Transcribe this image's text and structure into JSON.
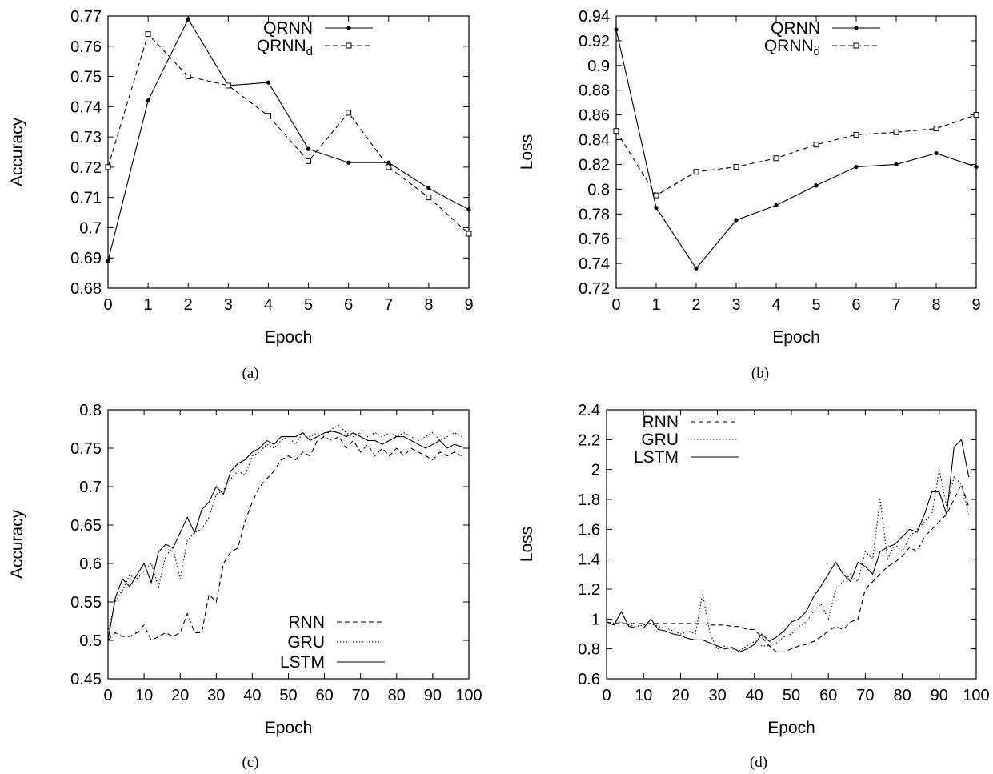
{
  "chart_data": [
    {
      "type": "line",
      "caption": "(a)",
      "xlabel": "Epoch",
      "ylabel": "Accuracy",
      "xlim": [
        0,
        9
      ],
      "ylim": [
        0.68,
        0.77
      ],
      "xticks": [
        "0",
        "1",
        "2",
        "3",
        "4",
        "5",
        "6",
        "7",
        "8",
        "9"
      ],
      "yticks": [
        "0.68",
        "0.69",
        "0.7",
        "0.71",
        "0.72",
        "0.73",
        "0.74",
        "0.75",
        "0.76",
        "0.77"
      ],
      "legend": "top-right",
      "x": [
        0,
        1,
        2,
        3,
        4,
        5,
        6,
        7,
        8,
        9
      ],
      "series": [
        {
          "name": "QRNN",
          "sub": "",
          "style": "solid",
          "marker": "filled-circle",
          "values": [
            0.689,
            0.742,
            0.769,
            0.747,
            0.748,
            0.726,
            0.7215,
            0.7215,
            0.713,
            0.706
          ]
        },
        {
          "name": "QRNN",
          "sub": "d",
          "style": "dashed",
          "marker": "open-square",
          "values": [
            0.72,
            0.764,
            0.75,
            0.747,
            0.737,
            0.722,
            0.738,
            0.72,
            0.71,
            0.698
          ]
        }
      ]
    },
    {
      "type": "line",
      "caption": "(b)",
      "xlabel": "Epoch",
      "ylabel": "Loss",
      "xlim": [
        0,
        9
      ],
      "ylim": [
        0.72,
        0.94
      ],
      "xticks": [
        "0",
        "1",
        "2",
        "3",
        "4",
        "5",
        "6",
        "7",
        "8",
        "9"
      ],
      "yticks": [
        "0.72",
        "0.74",
        "0.76",
        "0.78",
        "0.8",
        "0.82",
        "0.84",
        "0.86",
        "0.88",
        "0.9",
        "0.92",
        "0.94"
      ],
      "legend": "top-right",
      "x": [
        0,
        1,
        2,
        3,
        4,
        5,
        6,
        7,
        8,
        9
      ],
      "series": [
        {
          "name": "QRNN",
          "sub": "",
          "style": "solid",
          "marker": "filled-circle",
          "values": [
            0.929,
            0.785,
            0.736,
            0.775,
            0.787,
            0.803,
            0.818,
            0.82,
            0.829,
            0.818
          ]
        },
        {
          "name": "QRNN",
          "sub": "d",
          "style": "dashed",
          "marker": "open-square",
          "values": [
            0.847,
            0.795,
            0.814,
            0.818,
            0.825,
            0.836,
            0.844,
            0.846,
            0.849,
            0.86
          ]
        }
      ]
    },
    {
      "type": "line",
      "caption": "(c)",
      "xlabel": "Epoch",
      "ylabel": "Accuracy",
      "xlim": [
        0,
        100
      ],
      "ylim": [
        0.45,
        0.8
      ],
      "xticks": [
        "0",
        "10",
        "20",
        "30",
        "40",
        "50",
        "60",
        "70",
        "80",
        "90",
        "100"
      ],
      "yticks": [
        "0.45",
        "0.5",
        "0.55",
        "0.6",
        "0.65",
        "0.7",
        "0.75",
        "0.8"
      ],
      "legend": "bottom-right",
      "x": [
        0,
        2,
        4,
        6,
        8,
        10,
        12,
        14,
        16,
        18,
        20,
        22,
        24,
        26,
        28,
        30,
        32,
        34,
        36,
        38,
        40,
        42,
        44,
        46,
        48,
        50,
        52,
        54,
        56,
        58,
        60,
        62,
        64,
        66,
        68,
        70,
        72,
        74,
        76,
        78,
        80,
        82,
        84,
        86,
        88,
        90,
        92,
        94,
        96,
        98
      ],
      "series": [
        {
          "name": "RNN",
          "sub": "",
          "style": "dashed",
          "marker": "none",
          "values": [
            0.5,
            0.51,
            0.505,
            0.505,
            0.51,
            0.52,
            0.5,
            0.505,
            0.51,
            0.505,
            0.51,
            0.535,
            0.51,
            0.51,
            0.56,
            0.55,
            0.6,
            0.615,
            0.62,
            0.655,
            0.68,
            0.7,
            0.71,
            0.72,
            0.735,
            0.74,
            0.735,
            0.745,
            0.74,
            0.76,
            0.765,
            0.76,
            0.765,
            0.75,
            0.76,
            0.745,
            0.755,
            0.74,
            0.75,
            0.74,
            0.75,
            0.74,
            0.75,
            0.745,
            0.74,
            0.735,
            0.745,
            0.74,
            0.745,
            0.74
          ]
        },
        {
          "name": "GRU",
          "sub": "",
          "style": "dotted",
          "marker": "none",
          "values": [
            0.51,
            0.55,
            0.565,
            0.585,
            0.58,
            0.59,
            0.6,
            0.57,
            0.61,
            0.62,
            0.58,
            0.63,
            0.64,
            0.645,
            0.66,
            0.69,
            0.695,
            0.71,
            0.72,
            0.715,
            0.74,
            0.745,
            0.755,
            0.75,
            0.76,
            0.765,
            0.755,
            0.77,
            0.765,
            0.77,
            0.765,
            0.775,
            0.78,
            0.77,
            0.765,
            0.77,
            0.765,
            0.77,
            0.765,
            0.77,
            0.765,
            0.77,
            0.765,
            0.76,
            0.765,
            0.77,
            0.76,
            0.765,
            0.77,
            0.765
          ]
        },
        {
          "name": "LSTM",
          "sub": "",
          "style": "solid",
          "marker": "none",
          "values": [
            0.5,
            0.555,
            0.58,
            0.57,
            0.585,
            0.6,
            0.575,
            0.615,
            0.625,
            0.62,
            0.64,
            0.66,
            0.64,
            0.67,
            0.68,
            0.7,
            0.69,
            0.72,
            0.73,
            0.735,
            0.745,
            0.75,
            0.76,
            0.755,
            0.765,
            0.765,
            0.765,
            0.77,
            0.76,
            0.765,
            0.77,
            0.772,
            0.77,
            0.765,
            0.77,
            0.765,
            0.76,
            0.76,
            0.755,
            0.76,
            0.765,
            0.765,
            0.76,
            0.755,
            0.75,
            0.755,
            0.76,
            0.75,
            0.755,
            0.752
          ]
        }
      ]
    },
    {
      "type": "line",
      "caption": "(d)",
      "xlabel": "Epoch",
      "ylabel": "Loss",
      "xlim": [
        0,
        100
      ],
      "ylim": [
        0.6,
        2.4
      ],
      "xticks": [
        "0",
        "10",
        "20",
        "30",
        "40",
        "50",
        "60",
        "70",
        "80",
        "90",
        "100"
      ],
      "yticks": [
        "0.6",
        "0.8",
        "1",
        "1.2",
        "1.4",
        "1.6",
        "1.8",
        "2",
        "2.2",
        "2.4"
      ],
      "legend": "top-left",
      "x": [
        0,
        2,
        4,
        6,
        8,
        10,
        12,
        14,
        16,
        18,
        20,
        22,
        24,
        26,
        28,
        30,
        32,
        34,
        36,
        38,
        40,
        42,
        44,
        46,
        48,
        50,
        52,
        54,
        56,
        58,
        60,
        62,
        64,
        66,
        68,
        70,
        72,
        74,
        76,
        78,
        80,
        82,
        84,
        86,
        88,
        90,
        92,
        94,
        96,
        98
      ],
      "series": [
        {
          "name": "RNN",
          "sub": "",
          "style": "dashed",
          "marker": "none",
          "values": [
            0.98,
            0.97,
            0.97,
            0.97,
            0.97,
            0.97,
            0.97,
            0.97,
            0.97,
            0.97,
            0.97,
            0.97,
            0.97,
            0.97,
            0.96,
            0.96,
            0.96,
            0.95,
            0.95,
            0.93,
            0.93,
            0.88,
            0.82,
            0.78,
            0.78,
            0.8,
            0.82,
            0.83,
            0.85,
            0.88,
            0.92,
            0.95,
            0.93,
            0.98,
            1.0,
            1.2,
            1.25,
            1.3,
            1.35,
            1.38,
            1.42,
            1.48,
            1.45,
            1.55,
            1.6,
            1.65,
            1.7,
            1.8,
            1.9,
            1.75
          ]
        },
        {
          "name": "GRU",
          "sub": "",
          "style": "dotted",
          "marker": "none",
          "values": [
            0.98,
            0.97,
            0.98,
            0.96,
            0.95,
            0.96,
            0.97,
            0.95,
            0.94,
            0.92,
            0.9,
            0.92,
            0.9,
            1.17,
            0.9,
            0.8,
            0.82,
            0.8,
            0.79,
            0.82,
            0.85,
            0.82,
            0.82,
            0.84,
            0.88,
            0.9,
            0.95,
            0.98,
            1.05,
            1.1,
            1.0,
            1.2,
            1.25,
            1.3,
            1.25,
            1.45,
            1.4,
            1.8,
            1.4,
            1.5,
            1.45,
            1.55,
            1.6,
            1.65,
            1.7,
            2.0,
            1.75,
            1.95,
            1.9,
            1.7
          ]
        },
        {
          "name": "LSTM",
          "sub": "",
          "style": "solid",
          "marker": "none",
          "values": [
            0.98,
            0.96,
            1.05,
            0.95,
            0.94,
            0.94,
            1.0,
            0.93,
            0.92,
            0.9,
            0.89,
            0.87,
            0.86,
            0.86,
            0.84,
            0.82,
            0.8,
            0.81,
            0.78,
            0.8,
            0.83,
            0.9,
            0.85,
            0.88,
            0.92,
            0.98,
            1.0,
            1.05,
            1.15,
            1.22,
            1.3,
            1.38,
            1.3,
            1.25,
            1.38,
            1.35,
            1.3,
            1.45,
            1.48,
            1.5,
            1.55,
            1.6,
            1.58,
            1.7,
            1.85,
            1.85,
            1.7,
            2.15,
            2.2,
            1.95
          ]
        }
      ]
    }
  ]
}
